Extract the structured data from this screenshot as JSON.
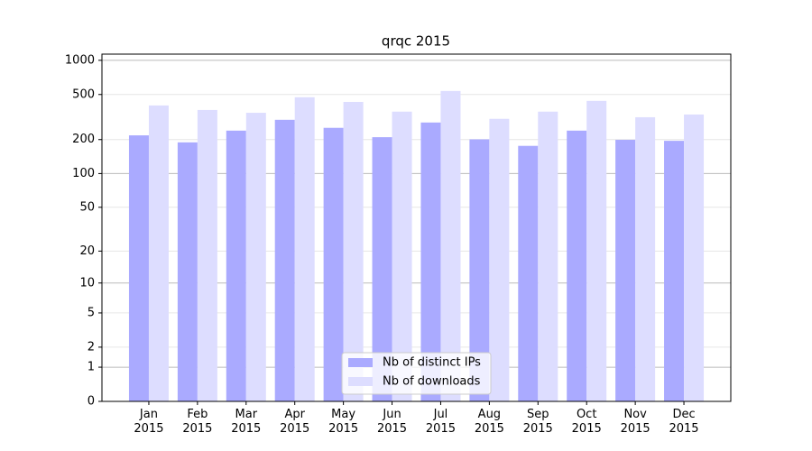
{
  "chart_data": {
    "type": "bar",
    "title": "qrqc 2015",
    "scale": "log1p",
    "categories": [
      "Jan\n2015",
      "Feb\n2015",
      "Mar\n2015",
      "Apr\n2015",
      "May\n2015",
      "Jun\n2015",
      "Jul\n2015",
      "Aug\n2015",
      "Sep\n2015",
      "Oct\n2015",
      "Nov\n2015",
      "Dec\n2015"
    ],
    "series": [
      {
        "name": "Nb of distinct IPs",
        "color": "#aaaaff",
        "values": [
          218,
          189,
          240,
          299,
          254,
          210,
          283,
          201,
          176,
          240,
          199,
          195
        ]
      },
      {
        "name": "Nb of downloads",
        "color": "#ddddff",
        "values": [
          400,
          365,
          345,
          473,
          430,
          353,
          537,
          305,
          353,
          439,
          315,
          333
        ]
      }
    ],
    "ylim": [
      0,
      1134
    ],
    "yticks": [
      0,
      1,
      2,
      5,
      10,
      20,
      50,
      100,
      200,
      500,
      1000
    ],
    "grid": true,
    "legend": "lower center"
  }
}
